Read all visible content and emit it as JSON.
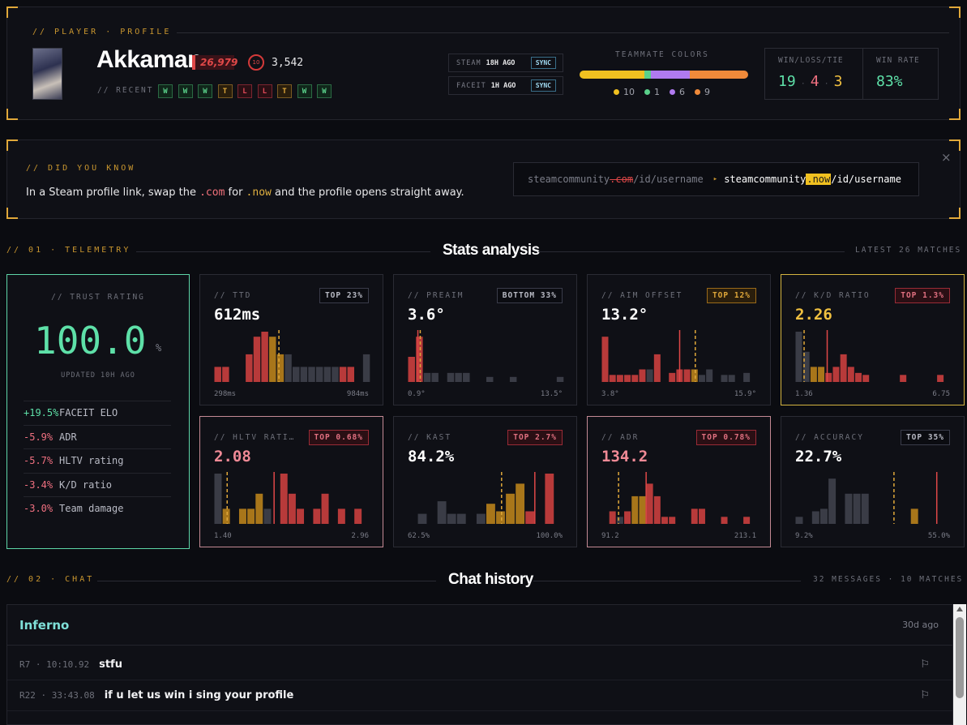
{
  "profile": {
    "section_label": "// PLAYER · PROFILE",
    "name": "Akkaman",
    "elo_badge": "26,979",
    "faceit_level": "10",
    "faceit_elo": "3,542",
    "recent_label": "// RECENT",
    "recent": [
      "W",
      "W",
      "W",
      "T",
      "L",
      "L",
      "T",
      "W",
      "W"
    ],
    "steam": {
      "label": "STEAM",
      "ago": "18H AGO",
      "btn": "SYNC"
    },
    "faceit": {
      "label": "FACEIT",
      "ago": "1H AGO",
      "btn": "SYNC"
    },
    "teammate_title": "TEAMMATE COLORS",
    "teammates": [
      {
        "count": "10",
        "color": "#f0c020"
      },
      {
        "count": "1",
        "color": "#5ad08a"
      },
      {
        "count": "6",
        "color": "#b07af0"
      },
      {
        "count": "9",
        "color": "#f08a3a"
      }
    ],
    "wlt_label": "WIN/LOSS/TIE",
    "wins": "19",
    "losses": "4",
    "ties": "3",
    "winrate_label": "WIN RATE",
    "winrate": "83%"
  },
  "dyk": {
    "label": "// DID YOU KNOW",
    "text_pre": "In a Steam profile link, swap the ",
    "com": ".com",
    "text_mid": " for ",
    "now": ".now",
    "text_post": " and the profile opens straight away.",
    "url_old_pre": "steamcommunity",
    "url_old_com": ".com",
    "url_old_post": "/id/username",
    "arrow": "▸",
    "url_new_pre": "steamcommunity",
    "url_new_now": ".now",
    "url_new_post": "/id/username",
    "close": "×"
  },
  "telemetry": {
    "left_label": "// 01 · TELEMETRY",
    "title": "Stats analysis",
    "right_label": "LATEST 26 MATCHES"
  },
  "trust": {
    "label": "// TRUST RATING",
    "value": "100.0",
    "unit": "%",
    "updated": "UPDATED 10H AGO",
    "deltas": [
      {
        "d": "+19.5%",
        "label": "FACEIT ELO",
        "color": "#5ee0a8"
      },
      {
        "d": "-5.9%",
        "label": "ADR",
        "color": "#f07080"
      },
      {
        "d": "-5.7%",
        "label": "HLTV rating",
        "color": "#f07080"
      },
      {
        "d": "-3.4%",
        "label": "K/D ratio",
        "color": "#f07080"
      },
      {
        "d": "-3.0%",
        "label": "Team damage",
        "color": "#f07080"
      }
    ]
  },
  "cards": [
    {
      "title": "// TTD",
      "value": "612ms",
      "badge": "TOP 23%",
      "badge_style": "plain",
      "min": "298ms",
      "max": "984ms",
      "value_color": "#ffffff",
      "border": "#2a2b34",
      "bars": [
        [
          0,
          0.3,
          "r"
        ],
        [
          1,
          0.3,
          "r"
        ],
        [
          4,
          0.55,
          "r"
        ],
        [
          5,
          0.9,
          "r"
        ],
        [
          6,
          1.0,
          "r"
        ],
        [
          7,
          0.9,
          "o"
        ],
        [
          8,
          0.55,
          "o"
        ],
        [
          9,
          0.55,
          "g"
        ],
        [
          10,
          0.3,
          "g"
        ],
        [
          11,
          0.3,
          "g"
        ],
        [
          12,
          0.3,
          "g"
        ],
        [
          13,
          0.3,
          "g"
        ],
        [
          14,
          0.3,
          "g"
        ],
        [
          15,
          0.3,
          "g"
        ],
        [
          16,
          0.3,
          "r"
        ],
        [
          17,
          0.3,
          "r"
        ],
        [
          19,
          0.55,
          "g"
        ]
      ],
      "nbins": 20,
      "lines": [
        [
          8.3,
          "o"
        ]
      ]
    },
    {
      "title": "// PREAIM",
      "value": "3.6°",
      "badge": "BOTTOM 33%",
      "badge_style": "plain",
      "min": "0.9°",
      "max": "13.5°",
      "value_color": "#ffffff",
      "border": "#2a2b34",
      "bars": [
        [
          0,
          0.5,
          "r"
        ],
        [
          1,
          0.9,
          "r"
        ],
        [
          2,
          0.18,
          "g"
        ],
        [
          3,
          0.18,
          "g"
        ],
        [
          5,
          0.18,
          "g"
        ],
        [
          6,
          0.18,
          "g"
        ],
        [
          7,
          0.18,
          "g"
        ],
        [
          10,
          0.1,
          "g"
        ],
        [
          13,
          0.1,
          "g"
        ],
        [
          19,
          0.1,
          "g"
        ]
      ],
      "nbins": 20,
      "lines": [
        [
          1.3,
          "r"
        ],
        [
          1.6,
          "o"
        ]
      ]
    },
    {
      "title": "// AIM OFFSET",
      "value": "13.2°",
      "badge": "TOP 12%",
      "badge_style": "gold",
      "min": "3.8°",
      "max": "15.9°",
      "value_color": "#ffffff",
      "border": "#2a2b34",
      "bars": [
        [
          0,
          0.9,
          "r"
        ],
        [
          1,
          0.14,
          "r"
        ],
        [
          2,
          0.14,
          "r"
        ],
        [
          3,
          0.14,
          "r"
        ],
        [
          4,
          0.14,
          "r"
        ],
        [
          5,
          0.25,
          "r"
        ],
        [
          6,
          0.25,
          "g"
        ],
        [
          7,
          0.55,
          "r"
        ],
        [
          9,
          0.18,
          "r"
        ],
        [
          10,
          0.25,
          "r"
        ],
        [
          11,
          0.25,
          "r"
        ],
        [
          12,
          0.25,
          "o"
        ],
        [
          13,
          0.14,
          "g"
        ],
        [
          14,
          0.25,
          "g"
        ],
        [
          16,
          0.14,
          "g"
        ],
        [
          17,
          0.14,
          "g"
        ],
        [
          19,
          0.18,
          "g"
        ]
      ],
      "nbins": 21,
      "lines": [
        [
          10.5,
          "r"
        ],
        [
          12.6,
          "o"
        ]
      ]
    },
    {
      "title": "// K/D RATIO",
      "value": "2.26",
      "badge": "TOP 1.3%",
      "badge_style": "red",
      "min": "1.36",
      "max": "6.75",
      "value_color": "#f0c040",
      "border": "#d4b440",
      "bars": [
        [
          0,
          1.0,
          "g"
        ],
        [
          1,
          0.6,
          "g"
        ],
        [
          2,
          0.3,
          "o"
        ],
        [
          3,
          0.3,
          "o"
        ],
        [
          4,
          0.18,
          "r"
        ],
        [
          5,
          0.3,
          "r"
        ],
        [
          6,
          0.55,
          "r"
        ],
        [
          7,
          0.3,
          "r"
        ],
        [
          8,
          0.18,
          "r"
        ],
        [
          9,
          0.14,
          "r"
        ],
        [
          14,
          0.14,
          "r"
        ],
        [
          19,
          0.14,
          "r"
        ]
      ],
      "nbins": 21,
      "lines": [
        [
          1.2,
          "o"
        ],
        [
          4.3,
          "r"
        ]
      ]
    },
    {
      "title": "// HLTV RATI…",
      "value": "2.08",
      "badge": "TOP 0.68%",
      "badge_style": "red",
      "min": "1.40",
      "max": "2.96",
      "value_color": "#f08a96",
      "border": "#c48a94",
      "bars": [
        [
          0,
          1.0,
          "g"
        ],
        [
          1,
          0.3,
          "o"
        ],
        [
          3,
          0.3,
          "o"
        ],
        [
          4,
          0.3,
          "o"
        ],
        [
          5,
          0.6,
          "o"
        ],
        [
          6,
          0.3,
          "g"
        ],
        [
          8,
          1.0,
          "r"
        ],
        [
          9,
          0.6,
          "r"
        ],
        [
          10,
          0.3,
          "r"
        ],
        [
          12,
          0.3,
          "r"
        ],
        [
          13,
          0.6,
          "r"
        ],
        [
          15,
          0.3,
          "r"
        ],
        [
          17,
          0.3,
          "r"
        ]
      ],
      "nbins": 19,
      "lines": [
        [
          1.6,
          "o"
        ],
        [
          7.3,
          "r"
        ]
      ]
    },
    {
      "title": "// KAST",
      "value": "84.2%",
      "badge": "TOP 2.7%",
      "badge_style": "red",
      "min": "62.5%",
      "max": "100.0%",
      "value_color": "#ffffff",
      "border": "#2a2b34",
      "bars": [
        [
          1,
          0.2,
          "g"
        ],
        [
          3,
          0.45,
          "g"
        ],
        [
          4,
          0.2,
          "g"
        ],
        [
          5,
          0.2,
          "g"
        ],
        [
          7,
          0.2,
          "g"
        ],
        [
          8,
          0.4,
          "o"
        ],
        [
          9,
          0.25,
          "o"
        ],
        [
          10,
          0.6,
          "o"
        ],
        [
          11,
          0.8,
          "o"
        ],
        [
          12,
          0.25,
          "r"
        ],
        [
          14,
          1.0,
          "r"
        ]
      ],
      "nbins": 16,
      "lines": [
        [
          9.6,
          "o"
        ],
        [
          13.0,
          "r"
        ]
      ]
    },
    {
      "title": "// ADR",
      "value": "134.2",
      "badge": "TOP 0.78%",
      "badge_style": "red",
      "min": "91.2",
      "max": "213.1",
      "value_color": "#f08a96",
      "border": "#c48a94",
      "bars": [
        [
          1,
          0.25,
          "r"
        ],
        [
          2,
          0.14,
          "g"
        ],
        [
          3,
          0.25,
          "r"
        ],
        [
          4,
          0.55,
          "o"
        ],
        [
          5,
          0.55,
          "o"
        ],
        [
          6,
          0.8,
          "r"
        ],
        [
          7,
          0.55,
          "r"
        ],
        [
          8,
          0.14,
          "r"
        ],
        [
          9,
          0.14,
          "r"
        ],
        [
          12,
          0.3,
          "r"
        ],
        [
          13,
          0.3,
          "r"
        ],
        [
          16,
          0.14,
          "r"
        ],
        [
          19,
          0.14,
          "r"
        ]
      ],
      "nbins": 21,
      "lines": [
        [
          2.3,
          "o"
        ],
        [
          6.0,
          "r"
        ]
      ]
    },
    {
      "title": "// ACCURACY",
      "value": "22.7%",
      "badge": "TOP 35%",
      "badge_style": "plain",
      "min": "9.2%",
      "max": "55.0%",
      "value_color": "#ffffff",
      "border": "#2a2b34",
      "bars": [
        [
          0,
          0.14,
          "g"
        ],
        [
          2,
          0.25,
          "g"
        ],
        [
          3,
          0.3,
          "g"
        ],
        [
          4,
          0.9,
          "g"
        ],
        [
          6,
          0.6,
          "g"
        ],
        [
          7,
          0.6,
          "g"
        ],
        [
          8,
          0.6,
          "g"
        ],
        [
          14,
          0.3,
          "o"
        ]
      ],
      "nbins": 19,
      "lines": [
        [
          12.0,
          "o"
        ],
        [
          17.2,
          "r"
        ]
      ]
    }
  ],
  "chat": {
    "left_label": "// 02 · CHAT",
    "title": "Chat history",
    "right_label": "32 MESSAGES · 10 MATCHES",
    "map": "Inferno",
    "ago": "30d ago",
    "messages": [
      {
        "ts": "R7 · 10:10.92",
        "msg": "stfu"
      },
      {
        "ts": "R22 · 33:43.08",
        "msg": "if u let us win i sing your profile"
      }
    ]
  },
  "colors": {
    "r": "#b83a3a",
    "o": "#a8761a",
    "g": "#3a3c46",
    "r_line": "#e04848",
    "o_line": "#e0a83a"
  }
}
